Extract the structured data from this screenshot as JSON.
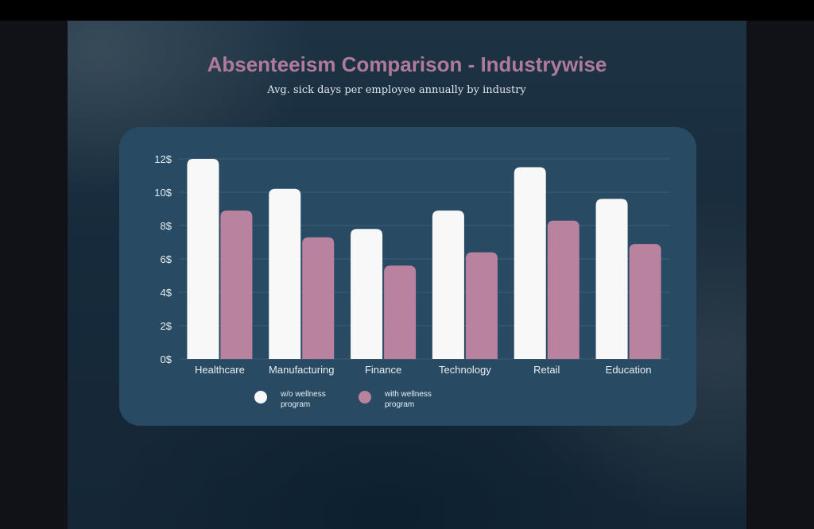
{
  "title": "Absenteeism Comparison - Industrywise",
  "subtitle": "Avg. sick days per employee annually by industry",
  "colors": {
    "series1": "#f8f8f8",
    "series2": "#b9839f",
    "title": "#b07a9c",
    "panel": "#284b63",
    "grid": "#3d5f78"
  },
  "legend": [
    {
      "label": "w/o wellness program"
    },
    {
      "label": "with wellness program"
    }
  ],
  "chart_data": {
    "type": "bar",
    "title": "Absenteeism Comparison - Industrywise",
    "subtitle": "Avg. sick days per employee annually by industry",
    "xlabel": "",
    "ylabel": "",
    "categories": [
      "Healthcare",
      "Manufacturing",
      "Finance",
      "Technology",
      "Retail",
      "Education"
    ],
    "series": [
      {
        "name": "w/o wellness program",
        "values": [
          12,
          10.2,
          7.8,
          8.9,
          11.5,
          9.6
        ]
      },
      {
        "name": "with wellness program",
        "values": [
          8.9,
          7.3,
          5.6,
          6.4,
          8.3,
          6.9
        ]
      }
    ],
    "ylim": [
      0,
      12
    ],
    "yticks": [
      "0$",
      "2$",
      "4$",
      "6$",
      "8$",
      "10$",
      "12$"
    ],
    "grid": true,
    "legend_position": "bottom"
  }
}
